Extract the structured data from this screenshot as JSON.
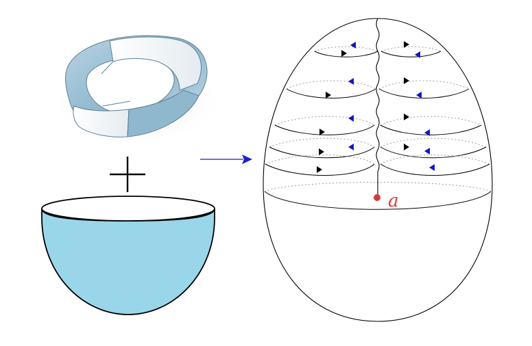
{
  "labels": {
    "point": "a"
  },
  "colors": {
    "bowl_fill": "#9ad6ea",
    "mobius_light": "#f3f5f7",
    "mobius_shade": "#8fb8cf",
    "point": "#d33b3b",
    "arrow_main": "#3b3fd6",
    "arrow_black": "#000000",
    "arrow_blue": "#1515c8"
  },
  "symbols": {
    "plus": "plus-sign",
    "implies": "arrow-right"
  }
}
